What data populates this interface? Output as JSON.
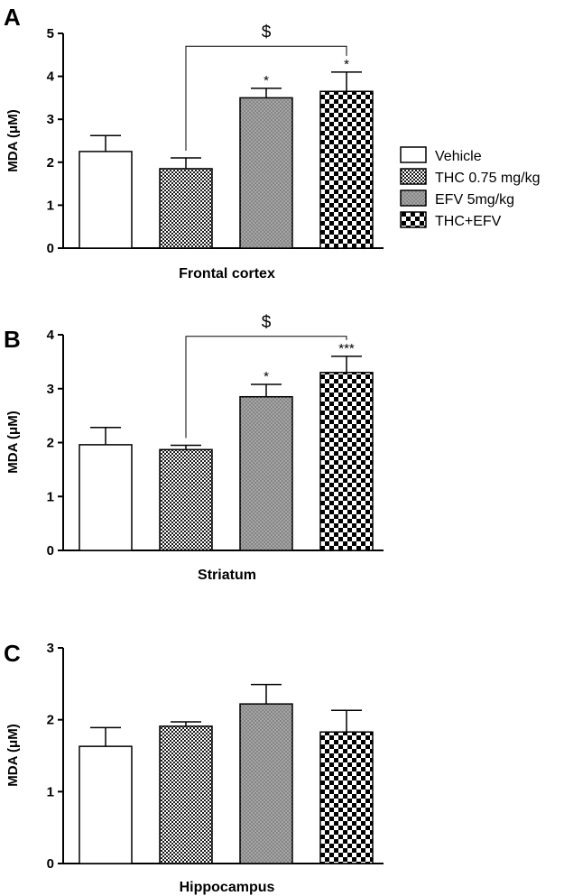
{
  "legend": {
    "position": "right",
    "items": [
      {
        "label": "Vehicle",
        "pattern": "white"
      },
      {
        "label": "THC 0.75 mg/kg",
        "pattern": "check-fine"
      },
      {
        "label": "EFV 5mg/kg",
        "pattern": "dots"
      },
      {
        "label": "THC+EFV",
        "pattern": "check-coarse"
      }
    ]
  },
  "chart_data": [
    {
      "type": "bar",
      "panel": "A",
      "xlabel": "Frontal cortex",
      "ylabel": "MDA (μM)",
      "ylim": [
        0,
        5
      ],
      "yticks": [
        "0",
        "1",
        "2",
        "3",
        "4",
        "5"
      ],
      "categories": [
        "Vehicle",
        "THC 0.75 mg/kg",
        "EFV 5mg/kg",
        "THC+EFV"
      ],
      "values": [
        2.25,
        1.85,
        3.5,
        3.65
      ],
      "errors": [
        0.37,
        0.25,
        0.22,
        0.45
      ],
      "significance": [
        "",
        "",
        "*",
        "*"
      ],
      "brackets": [
        {
          "from": 1,
          "to": 3,
          "label": "$",
          "y": 4.7
        }
      ]
    },
    {
      "type": "bar",
      "panel": "B",
      "xlabel": "Striatum",
      "ylabel": "MDA (μM)",
      "ylim": [
        0,
        4
      ],
      "yticks": [
        "0",
        "1",
        "2",
        "3",
        "4"
      ],
      "categories": [
        "Vehicle",
        "THC 0.75 mg/kg",
        "EFV 5mg/kg",
        "THC+EFV"
      ],
      "values": [
        1.96,
        1.87,
        2.85,
        3.3
      ],
      "errors": [
        0.32,
        0.08,
        0.23,
        0.3
      ],
      "significance": [
        "",
        "",
        "*",
        "***"
      ],
      "brackets": [
        {
          "from": 1,
          "to": 3,
          "label": "$",
          "y": 3.97
        }
      ]
    },
    {
      "type": "bar",
      "panel": "C",
      "xlabel": "Hippocampus",
      "ylabel": "MDA (μM)",
      "ylim": [
        0,
        3
      ],
      "yticks": [
        "0",
        "1",
        "2",
        "3"
      ],
      "categories": [
        "Vehicle",
        "THC 0.75 mg/kg",
        "EFV 5mg/kg",
        "THC+EFV"
      ],
      "values": [
        1.63,
        1.91,
        2.22,
        1.83
      ],
      "errors": [
        0.26,
        0.06,
        0.27,
        0.3
      ],
      "significance": [
        "",
        "",
        "",
        ""
      ],
      "brackets": []
    }
  ]
}
